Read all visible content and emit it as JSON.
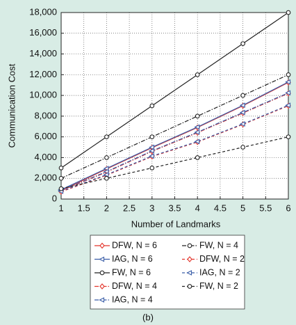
{
  "chart_data": {
    "type": "line",
    "xlabel": "Number of Landmarks",
    "ylabel": "Communication Cost",
    "caption": "(b)",
    "x": [
      1,
      2,
      3,
      4,
      5,
      6
    ],
    "xlim": [
      1,
      6
    ],
    "xticks": [
      1,
      1.5,
      2,
      2.5,
      3,
      3.5,
      4,
      4.5,
      5,
      5.5,
      6
    ],
    "ylim": [
      0,
      18000
    ],
    "yticks": [
      0,
      {
        "value": 2000,
        "label": "2,000"
      },
      {
        "value": 4000,
        "label": "4,000"
      },
      {
        "value": 6000,
        "label": "6,000"
      },
      {
        "value": 8000,
        "label": "8,000"
      },
      {
        "value": 10000,
        "label": "10,000"
      },
      {
        "value": 12000,
        "label": "12,000"
      },
      {
        "value": 14000,
        "label": "14,000"
      },
      {
        "value": 16000,
        "label": "16,000"
      },
      {
        "value": 18000,
        "label": "18,000"
      }
    ],
    "grid": true,
    "legend": "bottom",
    "series": [
      {
        "name": "DFW, N = 6",
        "color": "#e3342b",
        "line_style": "solid",
        "marker": "diamond",
        "values": [
          800,
          2900,
          4950,
          6900,
          9000,
          11250
        ]
      },
      {
        "name": "IAG, N = 6",
        "color": "#3b5ea8",
        "line_style": "solid",
        "marker": "triangle",
        "values": [
          900,
          2950,
          5000,
          6950,
          9050,
          11300
        ]
      },
      {
        "name": "FW, N = 6",
        "color": "#222222",
        "line_style": "solid",
        "marker": "circle",
        "values": [
          3000,
          6000,
          9000,
          12000,
          15000,
          18000
        ]
      },
      {
        "name": "DFW, N = 4",
        "color": "#e3342b",
        "line_style": "dashdot",
        "marker": "diamond",
        "values": [
          800,
          2600,
          4600,
          6400,
          8300,
          10200
        ]
      },
      {
        "name": "IAG, N = 4",
        "color": "#3b5ea8",
        "line_style": "dashdot",
        "marker": "triangle",
        "values": [
          850,
          2650,
          4650,
          6450,
          8350,
          10250
        ]
      },
      {
        "name": "FW, N = 4",
        "color": "#222222",
        "line_style": "dashdot",
        "marker": "circle",
        "values": [
          2000,
          4000,
          6000,
          8000,
          10000,
          12000
        ]
      },
      {
        "name": "DFW, N = 2",
        "color": "#e3342b",
        "line_style": "dashed",
        "marker": "diamond",
        "values": [
          700,
          2300,
          4100,
          5500,
          7200,
          9000
        ]
      },
      {
        "name": "IAG, N = 2",
        "color": "#3b5ea8",
        "line_style": "dashed",
        "marker": "triangle",
        "values": [
          750,
          2350,
          4150,
          5550,
          7250,
          9050
        ]
      },
      {
        "name": "FW, N = 2",
        "color": "#222222",
        "line_style": "dashed",
        "marker": "circle",
        "values": [
          1000,
          2000,
          3000,
          4000,
          5000,
          6000
        ]
      }
    ]
  }
}
